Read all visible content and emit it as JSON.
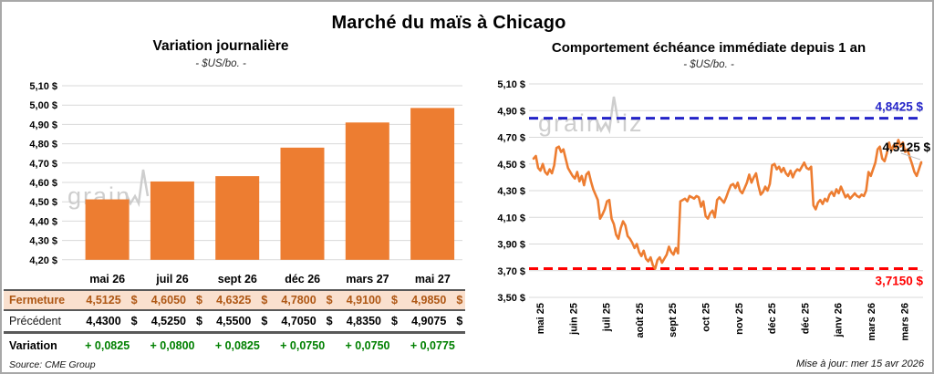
{
  "header": {
    "title": "Marché du maïs à Chicago"
  },
  "watermark": {
    "pre": "grain",
    "post": "iz"
  },
  "footer": {
    "source": "Source: CME Group",
    "updated": "Mise à jour: mer 15 avr 2026"
  },
  "table": {
    "columns": [
      "mai 26",
      "juil 26",
      "sept 26",
      "déc 26",
      "mars 27",
      "mai 27"
    ],
    "rows": [
      {
        "key": "fermeture",
        "label": "Fermeture",
        "values": [
          "4,5125",
          "4,6050",
          "4,6325",
          "4,7800",
          "4,9100",
          "4,9850"
        ],
        "unit": "$"
      },
      {
        "key": "precedent",
        "label": "Précédent",
        "values": [
          "4,4300",
          "4,5250",
          "4,5500",
          "4,7050",
          "4,8350",
          "4,9075"
        ],
        "unit": "$"
      },
      {
        "key": "variation",
        "label": "Variation",
        "values": [
          "+ 0,0825",
          "+ 0,0800",
          "+ 0,0825",
          "+ 0,0750",
          "+ 0,0750",
          "+ 0,0775"
        ],
        "unit": ""
      }
    ]
  },
  "chart_data": [
    {
      "type": "bar",
      "title": "Variation journalière",
      "subtitle": "- $US/bo. -",
      "categories": [
        "mai 26",
        "juil 26",
        "sept 26",
        "déc 26",
        "mars 27",
        "mai 27"
      ],
      "values": [
        4.5125,
        4.605,
        4.6325,
        4.78,
        4.91,
        4.985
      ],
      "xlabel": "",
      "ylabel": "$US/bo.",
      "ylim": [
        4.2,
        5.1
      ],
      "y_tick_labels": [
        "5,10 $",
        "5,00 $",
        "4,90 $",
        "4,80 $",
        "4,70 $",
        "4,60 $",
        "4,50 $",
        "4,40 $",
        "4,30 $",
        "4,20 $"
      ],
      "grid": true,
      "bar_color": "#ED7D31"
    },
    {
      "type": "line",
      "title": "Comportement échéance immédiate depuis 1 an",
      "subtitle": "- $US/bo. -",
      "xlabel": "",
      "ylabel": "$US/bo.",
      "ylim": [
        3.5,
        5.1
      ],
      "y_tick_labels": [
        "5,10 $",
        "4,90 $",
        "4,70 $",
        "4,50 $",
        "4,30 $",
        "4,10 $",
        "3,90 $",
        "3,70 $",
        "3,50 $"
      ],
      "x_tick_labels": [
        "mai 25",
        "juin 25",
        "juil 25",
        "août 25",
        "sept 25",
        "oct 25",
        "nov 25",
        "déc 25",
        "déc 25",
        "janv 26",
        "mars 26",
        "mars 26"
      ],
      "grid": true,
      "legend": "none",
      "ref_lines": [
        {
          "name": "resistance",
          "label": "4,8425 $",
          "value": 4.8425,
          "color": "#2323c8",
          "style": "dashed"
        },
        {
          "name": "support",
          "label": "3,7150 $",
          "value": 3.715,
          "color": "#ff0000",
          "style": "dashed"
        }
      ],
      "last_point_label": {
        "text": "4,5125 $",
        "value": 4.5125,
        "color": "#000000"
      },
      "series": [
        {
          "name": "échéance immédiate",
          "color": "#ED7D31",
          "values": [
            4.54,
            4.56,
            4.47,
            4.45,
            4.5,
            4.44,
            4.42,
            4.46,
            4.43,
            4.49,
            4.62,
            4.63,
            4.59,
            4.61,
            4.54,
            4.47,
            4.44,
            4.41,
            4.39,
            4.44,
            4.37,
            4.41,
            4.34,
            4.42,
            4.44,
            4.37,
            4.31,
            4.27,
            4.23,
            4.09,
            4.12,
            4.16,
            4.22,
            4.23,
            4.09,
            4.05,
            3.97,
            3.94,
            4.02,
            4.07,
            4.04,
            3.96,
            3.94,
            3.91,
            3.87,
            3.9,
            3.84,
            3.81,
            3.85,
            3.79,
            3.77,
            3.8,
            3.74,
            3.715,
            3.78,
            3.8,
            3.76,
            3.79,
            3.82,
            3.88,
            3.84,
            3.82,
            3.87,
            3.83,
            4.22,
            4.23,
            4.24,
            4.22,
            4.26,
            4.25,
            4.24,
            4.26,
            4.25,
            4.18,
            4.22,
            4.11,
            4.09,
            4.13,
            4.15,
            4.1,
            4.23,
            4.25,
            4.23,
            4.21,
            4.25,
            4.3,
            4.34,
            4.35,
            4.32,
            4.36,
            4.3,
            4.28,
            4.32,
            4.36,
            4.42,
            4.36,
            4.4,
            4.43,
            4.34,
            4.27,
            4.29,
            4.33,
            4.3,
            4.35,
            4.49,
            4.5,
            4.46,
            4.48,
            4.44,
            4.47,
            4.43,
            4.41,
            4.45,
            4.4,
            4.44,
            4.46,
            4.45,
            4.48,
            4.51,
            4.47,
            4.46,
            4.48,
            4.19,
            4.16,
            4.21,
            4.23,
            4.2,
            4.24,
            4.22,
            4.27,
            4.29,
            4.26,
            4.31,
            4.28,
            4.33,
            4.29,
            4.25,
            4.27,
            4.24,
            4.26,
            4.28,
            4.26,
            4.25,
            4.27,
            4.26,
            4.3,
            4.44,
            4.41,
            4.46,
            4.51,
            4.61,
            4.63,
            4.54,
            4.52,
            4.58,
            4.66,
            4.6,
            4.64,
            4.62,
            4.68,
            4.63,
            4.66,
            4.59,
            4.61,
            4.55,
            4.5,
            4.44,
            4.41,
            4.46,
            4.5125
          ]
        }
      ]
    }
  ]
}
